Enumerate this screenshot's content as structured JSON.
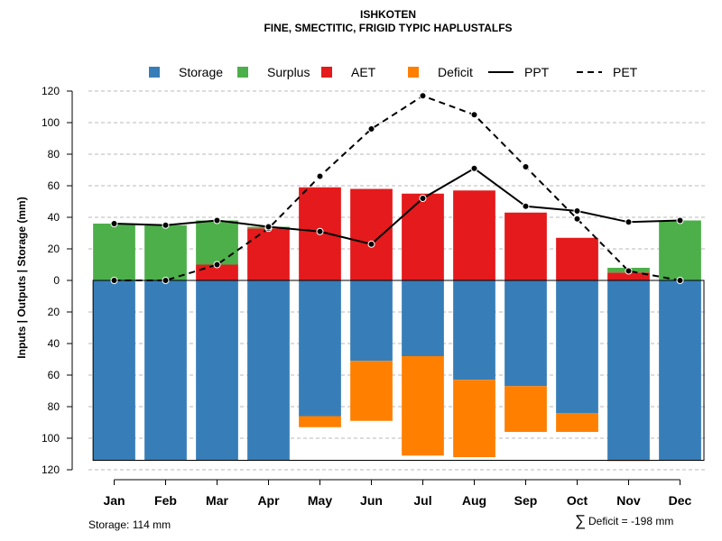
{
  "chart_data": {
    "type": "bar",
    "title": "ISHKOTEN",
    "subtitle": "FINE, SMECTITIC, FRIGID TYPIC HAPLUSTALFS",
    "ylabel": "Inputs | Outputs | Storage    (mm)",
    "xlabel": "",
    "ylim": [
      -120,
      120
    ],
    "ytick_values": [
      120,
      100,
      80,
      60,
      40,
      20,
      0,
      -20,
      -40,
      -60,
      -80,
      -100,
      -120
    ],
    "ytick_labels": [
      "120",
      "100",
      "80",
      "60",
      "40",
      "20",
      "0",
      "20",
      "40",
      "60",
      "80",
      "100",
      "120"
    ],
    "categories": [
      "Jan",
      "Feb",
      "Mar",
      "Apr",
      "May",
      "Jun",
      "Jul",
      "Aug",
      "Sep",
      "Oct",
      "Nov",
      "Dec"
    ],
    "legend": [
      {
        "label": "Storage",
        "kind": "box",
        "color": "#377EB8"
      },
      {
        "label": "Surplus",
        "kind": "box",
        "color": "#4DAF4A"
      },
      {
        "label": "AET",
        "kind": "box",
        "color": "#E41A1C"
      },
      {
        "label": "Deficit",
        "kind": "box",
        "color": "#FF7F00"
      },
      {
        "label": "PPT",
        "kind": "solid-line",
        "color": "#000000"
      },
      {
        "label": "PET",
        "kind": "dashed-line",
        "color": "#000000"
      }
    ],
    "series": [
      {
        "name": "Storage",
        "color": "#377EB8",
        "values": [
          114,
          114,
          114,
          114,
          86,
          51,
          48,
          63,
          67,
          84,
          114,
          114
        ]
      },
      {
        "name": "Deficit",
        "color": "#FF7F00",
        "values": [
          0,
          0,
          0,
          0,
          7,
          38,
          63,
          49,
          29,
          12,
          0.5,
          0
        ]
      },
      {
        "name": "AET",
        "color": "#E41A1C",
        "values": [
          0,
          0,
          10,
          33,
          59,
          58,
          55,
          57,
          43,
          27,
          5,
          0
        ]
      },
      {
        "name": "Surplus",
        "color": "#4DAF4A",
        "values": [
          36,
          35,
          28,
          1,
          0,
          0,
          0,
          0,
          0,
          0,
          3,
          38
        ]
      },
      {
        "name": "PPT",
        "color": "#000000",
        "values": [
          36,
          35,
          38,
          34,
          31,
          23,
          52,
          71,
          47,
          44,
          37,
          38
        ]
      },
      {
        "name": "PET",
        "color": "#000000",
        "values": [
          0,
          0,
          10,
          33,
          66,
          96,
          117,
          105,
          72,
          39,
          6,
          0
        ]
      }
    ],
    "storage_capacity": 114,
    "grid": true,
    "legend_position": "top"
  },
  "footer": {
    "storage_text": "Storage: 114 mm",
    "deficit_symbol": "∑",
    "deficit_text": "Deficit = -198 mm"
  }
}
